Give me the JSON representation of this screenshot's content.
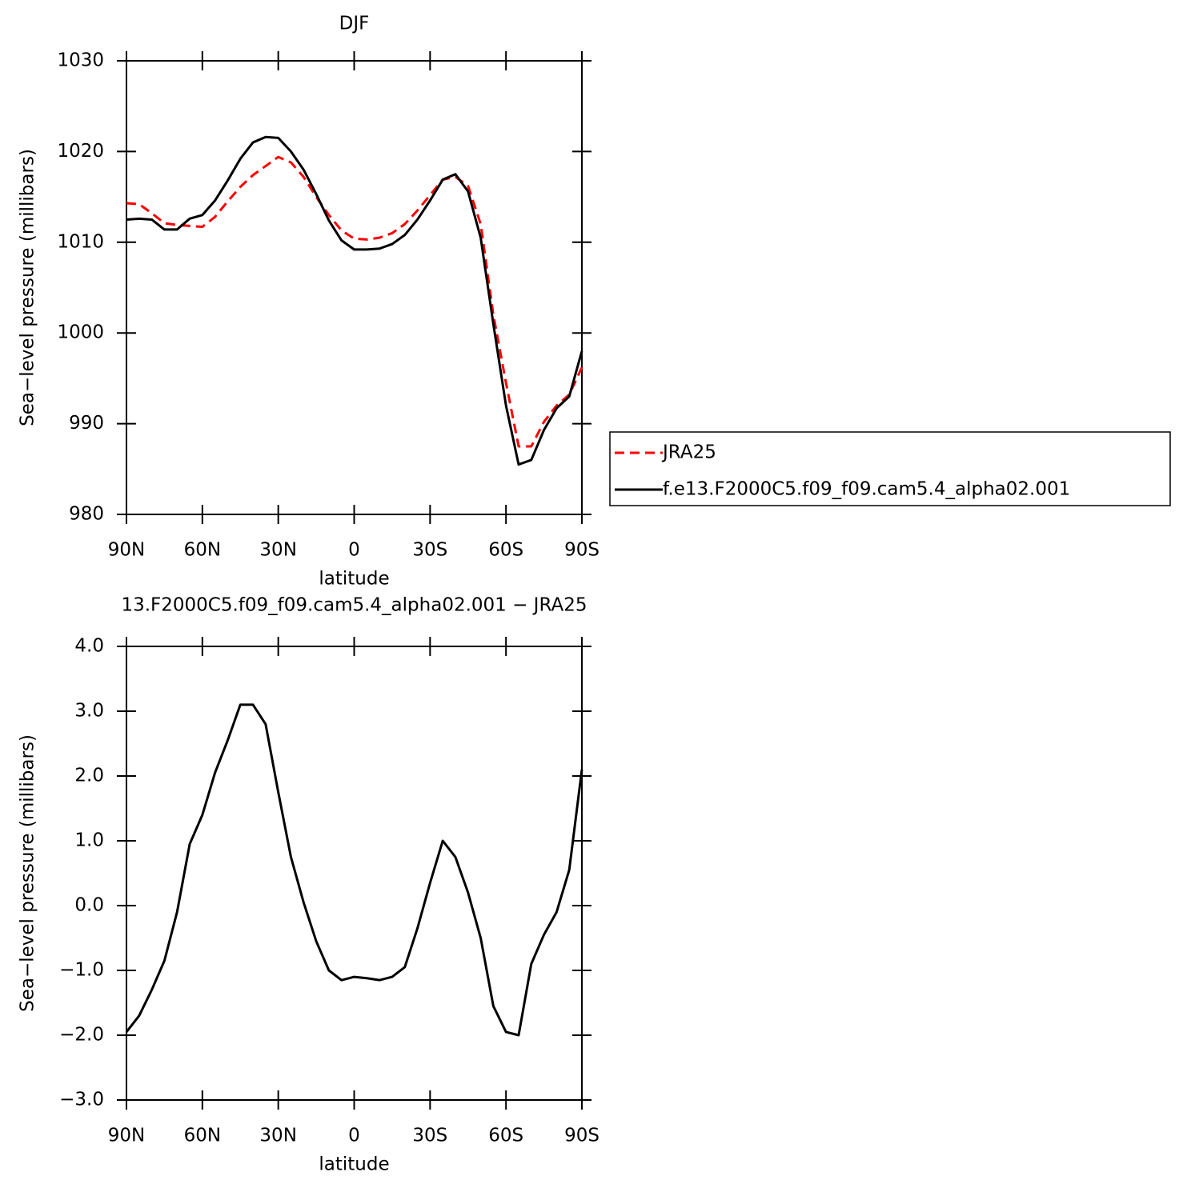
{
  "chart_data": [
    {
      "type": "line",
      "title": "DJF",
      "xlabel": "latitude",
      "ylabel": "Sea−level pressure (millibars)",
      "x": [
        90,
        85,
        80,
        75,
        70,
        65,
        60,
        55,
        50,
        45,
        40,
        35,
        30,
        25,
        20,
        15,
        10,
        5,
        0,
        -5,
        -10,
        -15,
        -20,
        -25,
        -30,
        -35,
        -40,
        -45,
        -50,
        -55,
        -60,
        -65,
        -70,
        -75,
        -80,
        -85,
        -90
      ],
      "series": [
        {
          "name": "JRA25",
          "color": "#ff0000",
          "dash": true,
          "values": [
            1014.3,
            1014.2,
            1013.2,
            1012.1,
            1011.9,
            1011.8,
            1011.7,
            1012.8,
            1014.5,
            1016.1,
            1017.4,
            1018.4,
            1019.4,
            1018.8,
            1017.2,
            1015.0,
            1013.0,
            1011.3,
            1010.4,
            1010.3,
            1010.5,
            1011.0,
            1012.0,
            1013.5,
            1015.2,
            1016.9,
            1017.2,
            1016.2,
            1012.0,
            1002.0,
            994.5,
            987.5,
            987.5,
            990.2,
            992.0,
            993.2,
            996.2
          ]
        },
        {
          "name": "f.e13.F2000C5.f09_f09.cam5.4_alpha02.001",
          "color": "#000000",
          "dash": false,
          "values": [
            1012.5,
            1012.6,
            1012.5,
            1011.4,
            1011.4,
            1012.6,
            1013.0,
            1014.6,
            1016.8,
            1019.2,
            1021.0,
            1021.6,
            1021.5,
            1020.0,
            1018.0,
            1015.3,
            1012.4,
            1010.2,
            1009.2,
            1009.2,
            1009.3,
            1009.8,
            1010.8,
            1012.5,
            1014.6,
            1016.9,
            1017.5,
            1015.6,
            1010.5,
            1001.0,
            992.0,
            985.5,
            986.0,
            989.3,
            991.7,
            993.0,
            998.0
          ]
        }
      ],
      "xlim": [
        90,
        -90
      ],
      "xticks": [
        {
          "value": 90,
          "label": "90N"
        },
        {
          "value": 60,
          "label": "60N"
        },
        {
          "value": 30,
          "label": "30N"
        },
        0,
        {
          "value": -30,
          "label": "30S"
        },
        {
          "value": -60,
          "label": "60S"
        },
        {
          "value": -90,
          "label": "90S"
        }
      ],
      "ylim": [
        980,
        1030
      ],
      "yticks": [
        980,
        990,
        1000,
        1010,
        1020,
        1030
      ],
      "legend": "outside-right"
    },
    {
      "type": "line",
      "title": "13.F2000C5.f09_f09.cam5.4_alpha02.001 − JRA25",
      "xlabel": "latitude",
      "ylabel": "Sea−level pressure (millibars)",
      "x": [
        90,
        85,
        80,
        75,
        70,
        65,
        60,
        55,
        50,
        45,
        40,
        35,
        30,
        25,
        20,
        15,
        10,
        5,
        0,
        -5,
        -10,
        -15,
        -20,
        -25,
        -30,
        -35,
        -40,
        -45,
        -50,
        -55,
        -60,
        -65,
        -70,
        -75,
        -80,
        -85,
        -90
      ],
      "series": [
        {
          "color": "#000000",
          "dash": false,
          "values": [
            -1.95,
            -1.7,
            -1.3,
            -0.85,
            -0.1,
            0.95,
            1.4,
            2.05,
            2.55,
            3.1,
            3.1,
            2.8,
            1.75,
            0.75,
            0.05,
            -0.55,
            -1.0,
            -1.15,
            -1.1,
            -1.12,
            -1.15,
            -1.1,
            -0.95,
            -0.35,
            0.35,
            1.0,
            0.75,
            0.2,
            -0.5,
            -1.55,
            -1.95,
            -2.0,
            -0.9,
            -0.45,
            -0.1,
            0.55,
            2.1
          ]
        }
      ],
      "xlim": [
        90,
        -90
      ],
      "xticks": [
        {
          "value": 90,
          "label": "90N"
        },
        {
          "value": 60,
          "label": "60N"
        },
        {
          "value": 30,
          "label": "30N"
        },
        0,
        {
          "value": -30,
          "label": "30S"
        },
        {
          "value": -60,
          "label": "60S"
        },
        {
          "value": -90,
          "label": "90S"
        }
      ],
      "ylim": [
        -3,
        4
      ],
      "yticks": [
        {
          "value": -3,
          "label": "−3.0"
        },
        {
          "value": -2,
          "label": "−2.0"
        },
        {
          "value": -1,
          "label": "−1.0"
        },
        {
          "value": 0,
          "label": "0.0"
        },
        {
          "value": 1,
          "label": "1.0"
        },
        {
          "value": 2,
          "label": "2.0"
        },
        {
          "value": 3,
          "label": "3.0"
        },
        {
          "value": 4,
          "label": "4.0"
        }
      ]
    }
  ]
}
